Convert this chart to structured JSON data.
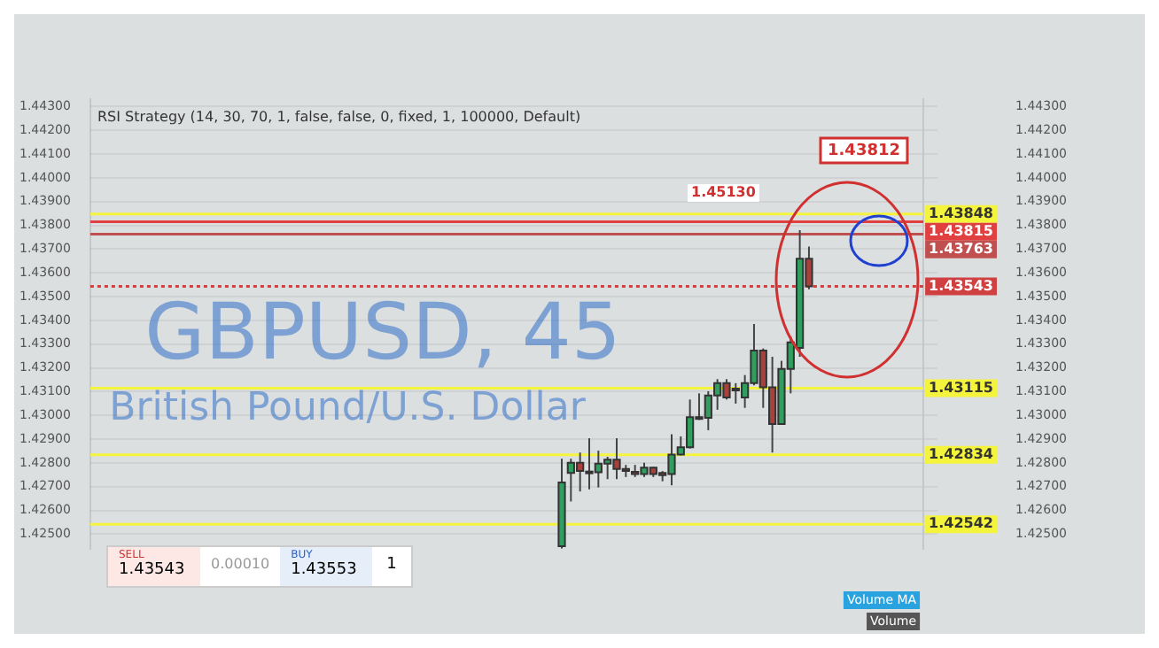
{
  "chart_data": {
    "type": "candlestick",
    "title": "GBPUSD, 45",
    "subtitle": "British Pound/U.S. Dollar",
    "categories": [
      null,
      null,
      null,
      null,
      null,
      null,
      null,
      null,
      null,
      null,
      null,
      null,
      null,
      null,
      null,
      null,
      null,
      null,
      null,
      null,
      null,
      null,
      null,
      null,
      null,
      null,
      null,
      null,
      null,
      null,
      null,
      null,
      null,
      null,
      null,
      null,
      null,
      null,
      null,
      null,
      null,
      null,
      null,
      null,
      null,
      null,
      null,
      null,
      null,
      null,
      null,
      null,
      null,
      null,
      null,
      null,
      null,
      null,
      null,
      null,
      null,
      null,
      null,
      null,
      null,
      null,
      null,
      null,
      null,
      null,
      null,
      null,
      null,
      null,
      null,
      null,
      null,
      null,
      null,
      null,
      null,
      null,
      null,
      null,
      null,
      null,
      null,
      null,
      null,
      null,
      null
    ],
    "ohlc": [
      null,
      null,
      null,
      null,
      null,
      null,
      null,
      null,
      null,
      null,
      null,
      null,
      null,
      null,
      null,
      null,
      null,
      null,
      null,
      null,
      null,
      null,
      null,
      null,
      null,
      null,
      null,
      null,
      null,
      null,
      null,
      null,
      null,
      null,
      null,
      null,
      null,
      null,
      null,
      null,
      null,
      null,
      null,
      null,
      null,
      null,
      null,
      null,
      null,
      null,
      null,
      [
        1.4245,
        1.42818,
        1.4244,
        1.42718
      ],
      [
        1.42758,
        1.42818,
        1.42638,
        1.42801
      ],
      [
        1.42801,
        1.42844,
        1.4268,
        1.42766
      ],
      [
        1.42764,
        1.42904,
        1.42689,
        1.42762
      ],
      [
        1.42761,
        1.42852,
        1.42697,
        1.42797
      ],
      [
        1.42797,
        1.42826,
        1.42732,
        1.42814
      ],
      [
        1.42814,
        1.42904,
        1.42732,
        1.42775
      ],
      [
        1.42775,
        1.42792,
        1.42741,
        1.42766
      ],
      [
        1.42763,
        1.42792,
        1.42741,
        1.42753
      ],
      [
        1.42753,
        1.42801,
        1.42741,
        1.4278
      ],
      [
        1.4278,
        1.42783,
        1.42741,
        1.42753
      ],
      [
        1.42758,
        1.42766,
        1.42723,
        1.42749
      ],
      [
        1.42753,
        1.42921,
        1.42706,
        1.42835
      ],
      [
        1.42835,
        1.42912,
        1.42832,
        1.42866
      ],
      [
        1.42866,
        1.43067,
        1.42861,
        1.42993
      ],
      [
        1.4299,
        1.43093,
        1.42981,
        1.42993
      ],
      [
        1.4299,
        1.43102,
        1.42938,
        1.43084
      ],
      [
        1.43084,
        1.43153,
        1.43024,
        1.43136
      ],
      [
        1.43136,
        1.43153,
        1.43067,
        1.43076
      ],
      [
        1.4311,
        1.43136,
        1.4305,
        1.43113
      ],
      [
        1.43076,
        1.4317,
        1.43032,
        1.43136
      ],
      [
        1.43136,
        1.43385,
        1.43127,
        1.43273
      ],
      [
        1.43273,
        1.43282,
        1.43032,
        1.43119
      ],
      [
        1.43119,
        1.43247,
        1.42844,
        1.42964
      ],
      [
        1.42964,
        1.4323,
        1.42964,
        1.43196
      ],
      [
        1.43196,
        1.43334,
        1.43093,
        1.43308
      ],
      [
        1.43284,
        1.4378,
        1.43247,
        1.4366
      ],
      [
        1.4366,
        1.43711,
        1.43531,
        1.43543
      ],
      null,
      null,
      null,
      null,
      null,
      null,
      null,
      null,
      null,
      null,
      null,
      null
    ],
    "colors": [
      null,
      null,
      null,
      null,
      null,
      null,
      null,
      null,
      null,
      null,
      null,
      null,
      null,
      null,
      null,
      null,
      null,
      null,
      null,
      null,
      null,
      null,
      null,
      null,
      null,
      null,
      null,
      null,
      null,
      null,
      null,
      null,
      null,
      null,
      null,
      null,
      null,
      null,
      null,
      null,
      null,
      null,
      null,
      null,
      null,
      null,
      null,
      null,
      null,
      null,
      null,
      "#2f9e5e",
      "#2f9e5e",
      "#a8403c",
      "#a8403c",
      "#2f9e5e",
      "#2f9e5e",
      "#a8403c",
      "#a8403c",
      "#a8403c",
      "#2f9e5e",
      "#a8403c",
      "#a8403c",
      "#2f9e5e",
      "#2f9e5e",
      "#2f9e5e",
      "#2f9e5e",
      "#2f9e5e",
      "#2f9e5e",
      "#a8403c",
      "#2f9e5e",
      "#2f9e5e",
      "#2f9e5e",
      "#a8403c",
      "#a8403c",
      "#2f9e5e",
      "#2f9e5e",
      "#2f9e5e",
      "#a8403c",
      null,
      null,
      null,
      null,
      null,
      null,
      null,
      null,
      null,
      null,
      null,
      null
    ],
    "ylim": [
      1.4244,
      1.4433
    ],
    "yticks": [
      {
        "value": 1.425,
        "label": "1.42500"
      },
      {
        "value": 1.426,
        "label": "1.42600"
      },
      {
        "value": 1.427,
        "label": "1.42700"
      },
      {
        "value": 1.428,
        "label": "1.42800"
      },
      {
        "value": 1.429,
        "label": "1.42900"
      },
      {
        "value": 1.43,
        "label": "1.43000"
      },
      {
        "value": 1.431,
        "label": "1.43100"
      },
      {
        "value": 1.432,
        "label": "1.43200"
      },
      {
        "value": 1.433,
        "label": "1.43300"
      },
      {
        "value": 1.434,
        "label": "1.43400"
      },
      {
        "value": 1.435,
        "label": "1.43500"
      },
      {
        "value": 1.436,
        "label": "1.43600"
      },
      {
        "value": 1.437,
        "label": "1.43700"
      },
      {
        "value": 1.438,
        "label": "1.43800"
      },
      {
        "value": 1.439,
        "label": "1.43900"
      },
      {
        "value": 1.44,
        "label": "1.44000"
      },
      {
        "value": 1.441,
        "label": "1.44100"
      },
      {
        "value": 1.442,
        "label": "1.44200"
      },
      {
        "value": 1.443,
        "label": "1.44300"
      }
    ],
    "y2lim": [
      1.4244,
      1.4433
    ],
    "y2ticks": [
      {
        "value": 1.425,
        "label": "1.42500"
      },
      {
        "value": 1.426,
        "label": "1.42600"
      },
      {
        "value": 1.427,
        "label": "1.42700"
      },
      {
        "value": 1.428,
        "label": "1.42800"
      },
      {
        "value": 1.429,
        "label": "1.42900"
      },
      {
        "value": 1.43,
        "label": "1.43000"
      },
      {
        "value": 1.431,
        "label": "1.43100"
      },
      {
        "value": 1.432,
        "label": "1.43200"
      },
      {
        "value": 1.433,
        "label": "1.43300"
      },
      {
        "value": 1.434,
        "label": "1.43400"
      },
      {
        "value": 1.435,
        "label": "1.43500"
      },
      {
        "value": 1.436,
        "label": "1.43600"
      },
      {
        "value": 1.437,
        "label": "1.43700"
      },
      {
        "value": 1.438,
        "label": "1.43800"
      },
      {
        "value": 1.439,
        "label": "1.43900"
      },
      {
        "value": 1.44,
        "label": "1.44000"
      },
      {
        "value": 1.441,
        "label": "1.44100"
      },
      {
        "value": 1.442,
        "label": "1.44200"
      },
      {
        "value": 1.443,
        "label": "1.44300"
      }
    ],
    "ref_lines": [
      {
        "axis": "y",
        "value": 1.43848,
        "label": "1.43848",
        "color": "#f4f43c",
        "line_style": "solid"
      },
      {
        "axis": "y",
        "value": 1.43815,
        "label": "1.43815",
        "color": "#e04040",
        "line_style": "solid"
      },
      {
        "axis": "y",
        "value": 1.43763,
        "label": "1.43763",
        "color": "#c05050",
        "line_style": "solid"
      },
      {
        "axis": "y",
        "value": 1.43543,
        "label": "1.43543",
        "color": "#d04040",
        "line_style": "dotted"
      },
      {
        "axis": "y",
        "value": 1.43115,
        "label": "1.43115",
        "color": "#f4f43c",
        "line_style": "solid"
      },
      {
        "axis": "y",
        "value": 1.42834,
        "label": "1.42834",
        "color": "#f4f43c",
        "line_style": "solid"
      },
      {
        "axis": "y",
        "value": 1.42542,
        "label": "1.42542",
        "color": "#f4f43c",
        "line_style": "solid"
      }
    ],
    "annotations": [
      "RSI Strategy (14, 30, 70, 1, false, false, 0, fixed, 1, 100000, Default)",
      "1.43812",
      "1.45130",
      "Volume MA",
      "Volume",
      "SELL",
      "1.43543",
      "0.00010",
      "BUY",
      "1.43553",
      "1"
    ],
    "grid": "y",
    "tick_labels": "y"
  }
}
